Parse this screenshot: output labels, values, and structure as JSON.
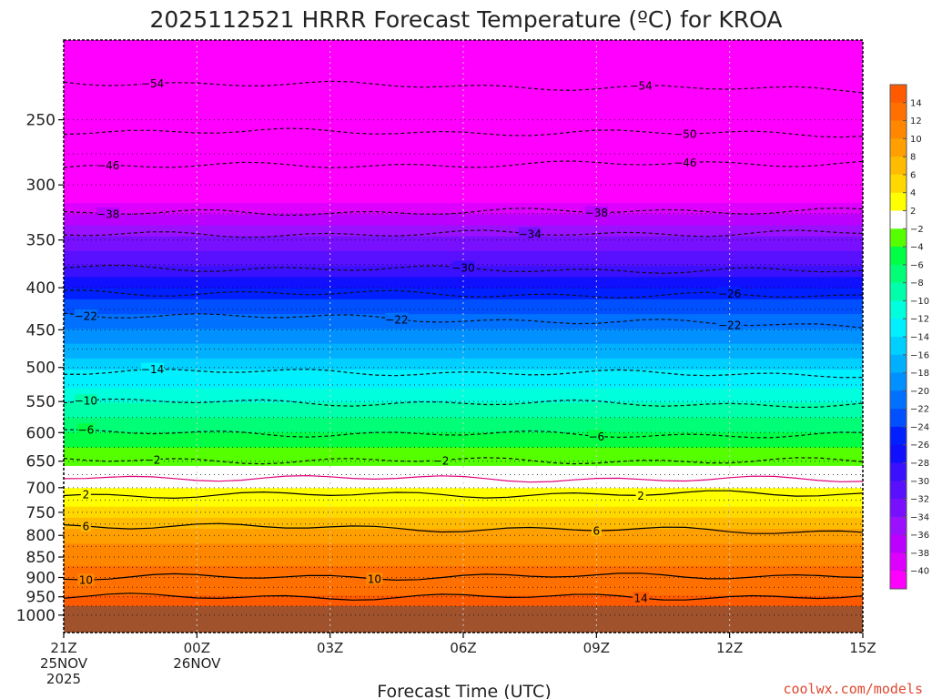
{
  "chart_data": {
    "type": "heatmap",
    "title": "2025112521 HRRR Forecast Temperature (ºC) for KROA",
    "xlabel": "Forecast Time (UTC)",
    "credit": "coolwx.com/models",
    "x_ticks": [
      {
        "hour": 0,
        "lines": [
          "21Z",
          "25NOV",
          "2025"
        ]
      },
      {
        "hour": 3,
        "lines": [
          "00Z",
          "26NOV"
        ]
      },
      {
        "hour": 6,
        "lines": [
          "03Z"
        ]
      },
      {
        "hour": 9,
        "lines": [
          "06Z"
        ]
      },
      {
        "hour": 12,
        "lines": [
          "09Z"
        ]
      },
      {
        "hour": 15,
        "lines": [
          "12Z"
        ]
      },
      {
        "hour": 18,
        "lines": [
          "15Z"
        ]
      }
    ],
    "xlim_hours": [
      0,
      18
    ],
    "y_scale": "log-pressure",
    "ylim_hpa": [
      1050,
      200
    ],
    "y_ticks": [
      250,
      300,
      350,
      400,
      450,
      500,
      550,
      600,
      650,
      700,
      750,
      800,
      850,
      900,
      950,
      1000
    ],
    "y_dotted_gridlines": [
      250,
      275,
      300,
      325,
      350,
      375,
      400,
      425,
      450,
      475,
      500,
      525,
      550,
      575,
      600,
      625,
      650,
      675,
      700,
      725,
      750,
      775,
      800,
      825,
      850,
      875,
      900,
      925,
      950,
      975,
      1000
    ],
    "ground_below_hpa": 975,
    "temperature_profile_by_pressure": [
      {
        "p": 200,
        "t": -58
      },
      {
        "p": 220,
        "t": -56
      },
      {
        "p": 230,
        "t": -54
      },
      {
        "p": 260,
        "t": -50
      },
      {
        "p": 285,
        "t": -46
      },
      {
        "p": 310,
        "t": -42
      },
      {
        "p": 325,
        "t": -38
      },
      {
        "p": 345,
        "t": -34
      },
      {
        "p": 375,
        "t": -30
      },
      {
        "p": 400,
        "t": -26
      },
      {
        "p": 430,
        "t": -22
      },
      {
        "p": 470,
        "t": -18
      },
      {
        "p": 505,
        "t": -14
      },
      {
        "p": 550,
        "t": -10
      },
      {
        "p": 600,
        "t": -6
      },
      {
        "p": 650,
        "t": -2
      },
      {
        "p": 680,
        "t": 0
      },
      {
        "p": 710,
        "t": 2
      },
      {
        "p": 760,
        "t": 6
      },
      {
        "p": 815,
        "t": 10
      },
      {
        "p": 870,
        "t": 12
      },
      {
        "p": 950,
        "t": 14
      },
      {
        "p": 1000,
        "t": 14
      }
    ],
    "contours": [
      {
        "value": -54,
        "style": "dashed",
        "p_start": 225,
        "p_end": 230,
        "label_at_hours": [
          2.1,
          13
        ]
      },
      {
        "value": -50,
        "style": "dashed",
        "p_start": 258,
        "p_end": 260,
        "label_at_hours": [
          14
        ]
      },
      {
        "value": -46,
        "style": "dashed",
        "p_start": 285,
        "p_end": 282,
        "label_at_hours": [
          1.2,
          14
        ]
      },
      {
        "value": -38,
        "style": "dashed",
        "p_start": 325,
        "p_end": 322,
        "label_at_hours": [
          1.2,
          12
        ]
      },
      {
        "value": -34,
        "style": "dashed",
        "p_start": 345,
        "p_end": 343,
        "label_at_hours": [
          10.5
        ]
      },
      {
        "value": -30,
        "style": "dashed",
        "p_start": 378,
        "p_end": 382,
        "label_at_hours": [
          9
        ]
      },
      {
        "value": -26,
        "style": "dashed",
        "p_start": 405,
        "p_end": 410,
        "label_at_hours": [
          15
        ]
      },
      {
        "value": -22,
        "style": "dashed",
        "p_start": 430,
        "p_end": 445,
        "label_at_hours": [
          -1,
          7.6,
          15
        ]
      },
      {
        "value": -14,
        "style": "dashed",
        "p_start": 505,
        "p_end": 510,
        "label_at_hours": [
          2.1
        ]
      },
      {
        "value": -10,
        "style": "dashed",
        "p_start": 550,
        "p_end": 555,
        "label_at_hours": [
          0.1
        ]
      },
      {
        "value": -6,
        "style": "dashed",
        "p_start": 600,
        "p_end": 605,
        "label_at_hours": [
          0.1,
          12
        ]
      },
      {
        "value": -2,
        "style": "dashed",
        "p_start": 648,
        "p_end": 650,
        "label_at_hours": [
          2.1,
          8.3
        ]
      },
      {
        "value": 0,
        "style": "solid-magenta",
        "p_start": 680,
        "p_end": 685,
        "label_at_hours": []
      },
      {
        "value": 2,
        "style": "solid",
        "p_start": 715,
        "p_end": 712,
        "label_at_hours": [
          -2,
          13
        ]
      },
      {
        "value": 6,
        "style": "solid",
        "p_start": 778,
        "p_end": 792,
        "label_at_hours": [
          -1,
          11.8
        ]
      },
      {
        "value": 10,
        "style": "solid",
        "p_start": 900,
        "p_end": 895,
        "label_at_hours": [
          0.1,
          7.1
        ]
      },
      {
        "value": 14,
        "style": "solid",
        "p_start": 950,
        "p_end": 950,
        "label_at_hours": [
          12.8
        ]
      }
    ],
    "colorbar": {
      "labels": [
        "14",
        "12",
        "10",
        "8",
        "6",
        "4",
        "2",
        "-2",
        "-4",
        "-6",
        "-8",
        "-10",
        "-12",
        "-14",
        "-16",
        "-18",
        "-20",
        "-22",
        "-24",
        "-26",
        "-28",
        "-30",
        "-32",
        "-34",
        "-36",
        "-38",
        "-40"
      ],
      "bins": [
        {
          "t": 15,
          "color": "#ff5a00"
        },
        {
          "t": 13,
          "color": "#ff7000"
        },
        {
          "t": 11,
          "color": "#ff8700"
        },
        {
          "t": 9,
          "color": "#ffa000"
        },
        {
          "t": 7,
          "color": "#ffbb00"
        },
        {
          "t": 5,
          "color": "#ffd800"
        },
        {
          "t": 3,
          "color": "#ffff00"
        },
        {
          "t": 0,
          "color": "#ffffff"
        },
        {
          "t": -3,
          "color": "#55ff00"
        },
        {
          "t": -5,
          "color": "#00ff44"
        },
        {
          "t": -7,
          "color": "#00ff77"
        },
        {
          "t": -9,
          "color": "#00ffaa"
        },
        {
          "t": -11,
          "color": "#00ffdd"
        },
        {
          "t": -13,
          "color": "#00f0ff"
        },
        {
          "t": -15,
          "color": "#00d0ff"
        },
        {
          "t": -17,
          "color": "#00b0ff"
        },
        {
          "t": -19,
          "color": "#0090ff"
        },
        {
          "t": -21,
          "color": "#0070ff"
        },
        {
          "t": -23,
          "color": "#0050ff"
        },
        {
          "t": -25,
          "color": "#0020ff"
        },
        {
          "t": -27,
          "color": "#1010ff"
        },
        {
          "t": -29,
          "color": "#3a10ff"
        },
        {
          "t": -31,
          "color": "#5810ff"
        },
        {
          "t": -33,
          "color": "#7810ff"
        },
        {
          "t": -35,
          "color": "#9a10ff"
        },
        {
          "t": -37,
          "color": "#bc00ff"
        },
        {
          "t": -39,
          "color": "#dd00ff"
        },
        {
          "t": -42,
          "color": "#ff00ff"
        }
      ]
    },
    "ground_color": "#a0522d"
  }
}
